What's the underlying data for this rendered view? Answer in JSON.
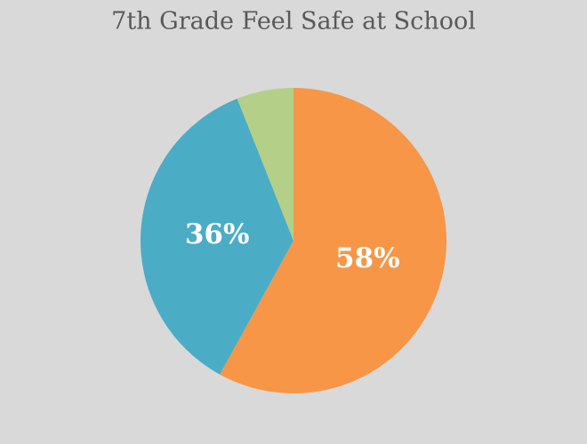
{
  "chart_data": {
    "type": "pie",
    "title": "7th Grade Feel Safe at School",
    "values": [
      58,
      36,
      6
    ],
    "value_labels": [
      "58%",
      "36%",
      null
    ],
    "colors": [
      "#f79646",
      "#4bacc6",
      "#b3cf88"
    ]
  }
}
